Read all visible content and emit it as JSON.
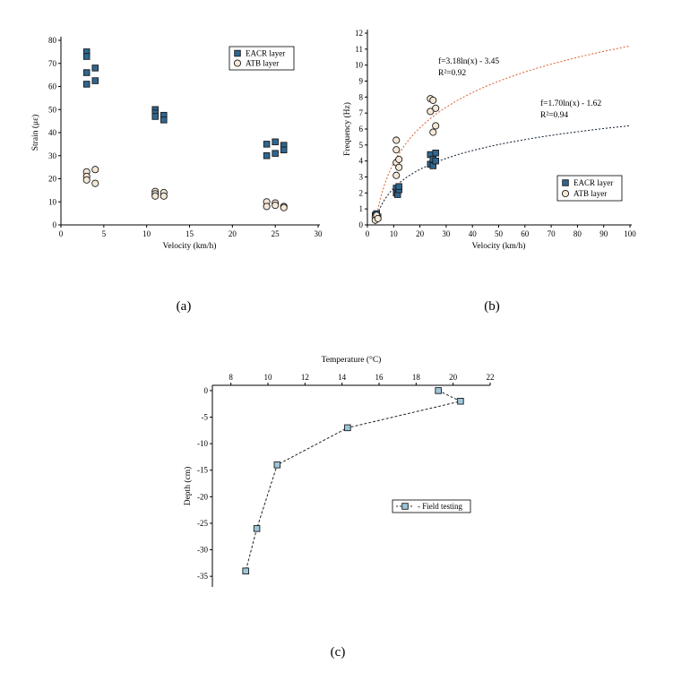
{
  "chart_data": [
    {
      "type": "scatter",
      "caption": "(a)",
      "xlabel": "Velocity (km/h)",
      "ylabel": "Strain (με)",
      "xlim": [
        0,
        30
      ],
      "ylim": [
        0,
        80
      ],
      "xticks": [
        0,
        5,
        10,
        15,
        20,
        25,
        30
      ],
      "yticks": [
        0,
        10,
        20,
        30,
        40,
        50,
        60,
        70,
        80
      ],
      "legend_position": "top-right",
      "grid": false,
      "series": [
        {
          "name": "EACR layer",
          "marker": "square",
          "color": "#2f6690",
          "points": [
            [
              3,
              75
            ],
            [
              3,
              73
            ],
            [
              3,
              66
            ],
            [
              3,
              61
            ],
            [
              4,
              68
            ],
            [
              4,
              62.5
            ],
            [
              11,
              50
            ],
            [
              11,
              48.5
            ],
            [
              11,
              47
            ],
            [
              12,
              47.5
            ],
            [
              12,
              45.5
            ],
            [
              24,
              35
            ],
            [
              24,
              30
            ],
            [
              25,
              36
            ],
            [
              25,
              31
            ],
            [
              26,
              34.5
            ],
            [
              26,
              32.5
            ]
          ]
        },
        {
          "name": "ATB layer",
          "marker": "circle",
          "color": "#f6e8d6",
          "points": [
            [
              3,
              23
            ],
            [
              3,
              21
            ],
            [
              3,
              19.5
            ],
            [
              4,
              24
            ],
            [
              4,
              18
            ],
            [
              11,
              14.5
            ],
            [
              11,
              13.5
            ],
            [
              11,
              12.5
            ],
            [
              12,
              14
            ],
            [
              12,
              12.5
            ],
            [
              24,
              10
            ],
            [
              24,
              8
            ],
            [
              25,
              9.5
            ],
            [
              25,
              8.5
            ],
            [
              26,
              8
            ],
            [
              26,
              7.5
            ]
          ]
        }
      ]
    },
    {
      "type": "scatter",
      "caption": "(b)",
      "xlabel": "Velocity (km/h)",
      "ylabel": "Frequency (Hz)",
      "xlim": [
        0,
        100
      ],
      "ylim": [
        0,
        12
      ],
      "xticks": [
        0,
        10,
        20,
        30,
        40,
        50,
        60,
        70,
        80,
        90,
        100
      ],
      "yticks": [
        0,
        1,
        2,
        3,
        4,
        5,
        6,
        7,
        8,
        9,
        10,
        11,
        12
      ],
      "legend_position": "bottom-right",
      "grid": false,
      "series": [
        {
          "name": "EACR layer",
          "marker": "square",
          "color": "#2f6690",
          "points": [
            [
              3,
              0.6
            ],
            [
              3,
              0.4
            ],
            [
              3.5,
              0.7
            ],
            [
              4,
              0.5
            ],
            [
              11,
              2.3
            ],
            [
              11,
              2.0
            ],
            [
              11.5,
              1.9
            ],
            [
              12,
              2.2
            ],
            [
              12,
              2.4
            ],
            [
              24,
              4.4
            ],
            [
              24,
              3.8
            ],
            [
              25,
              4.1
            ],
            [
              25,
              3.7
            ],
            [
              26,
              4.5
            ],
            [
              26,
              4.0
            ]
          ]
        },
        {
          "name": "ATB layer",
          "marker": "circle",
          "color": "#f6e8d6",
          "points": [
            [
              3,
              0.5
            ],
            [
              3,
              0.3
            ],
            [
              3.5,
              0.6
            ],
            [
              4,
              0.4
            ],
            [
              11,
              5.3
            ],
            [
              11,
              4.7
            ],
            [
              11,
              3.9
            ],
            [
              11,
              3.1
            ],
            [
              12,
              4.1
            ],
            [
              12,
              3.6
            ],
            [
              24,
              7.9
            ],
            [
              24,
              7.1
            ],
            [
              25,
              7.8
            ],
            [
              25,
              5.8
            ],
            [
              26,
              7.3
            ],
            [
              26,
              6.2
            ]
          ]
        }
      ],
      "fits": [
        {
          "series": "ATB layer",
          "a": 3.18,
          "b": -3.45,
          "color": "#e06a3a",
          "equation": "f=3.18ln(x) - 3.45",
          "r2": "R²=0.92"
        },
        {
          "series": "EACR layer",
          "a": 1.7,
          "b": -1.62,
          "color": "#1d2a3a",
          "equation": "f=1.70ln(x) - 1.62",
          "r2": "R²=0.94"
        }
      ]
    },
    {
      "type": "line",
      "caption": "(c)",
      "xlabel": "Temperature (°C)",
      "ylabel": "Depth (cm)",
      "xlim": [
        7,
        22
      ],
      "ylim": [
        -37,
        1
      ],
      "xticks": [
        8,
        10,
        12,
        14,
        16,
        18,
        20,
        22
      ],
      "yticks": [
        0,
        -5,
        -10,
        -15,
        -20,
        -25,
        -30,
        -35
      ],
      "x_axis_position": "top",
      "legend_position": "center-right",
      "grid": false,
      "series": [
        {
          "name": "Field testing",
          "marker": "square",
          "line": "dashed",
          "color": "#9cc6d9",
          "points": [
            [
              19.2,
              0
            ],
            [
              20.4,
              -2
            ],
            [
              14.3,
              -7
            ],
            [
              10.5,
              -14
            ],
            [
              9.4,
              -26
            ],
            [
              8.8,
              -34
            ]
          ]
        }
      ]
    }
  ]
}
